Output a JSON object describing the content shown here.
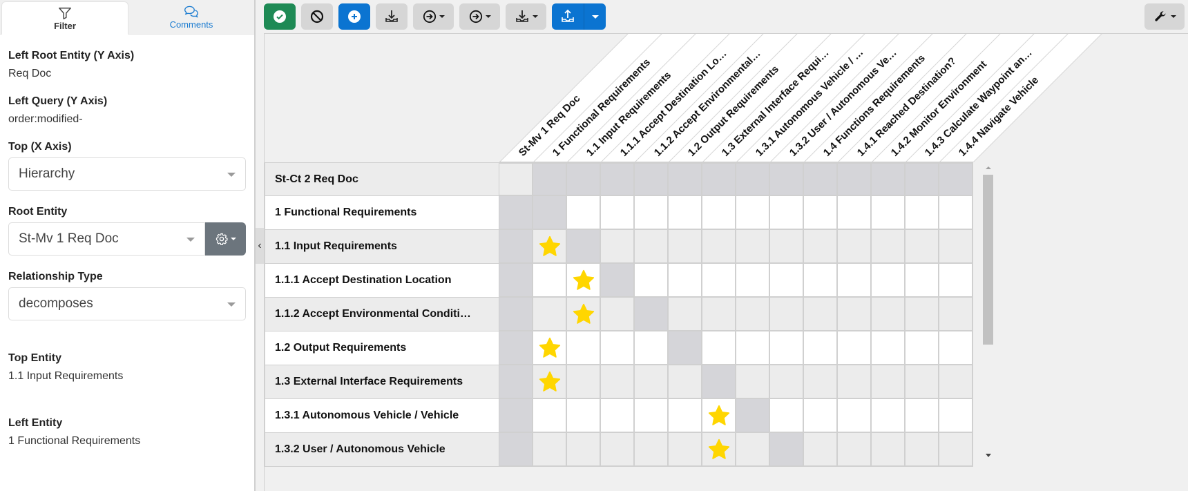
{
  "sidebar": {
    "tabs": [
      {
        "label": "Filter",
        "icon": "filter-icon",
        "active": true
      },
      {
        "label": "Comments",
        "icon": "comments-icon",
        "active": false
      }
    ],
    "fields": {
      "left_root_entity_label": "Left Root Entity (Y Axis)",
      "left_root_entity_value": "Req Doc",
      "left_query_label": "Left Query (Y Axis)",
      "left_query_value": "order:modified-",
      "top_axis_label": "Top (X Axis)",
      "top_axis_value": "Hierarchy",
      "root_entity_label": "Root Entity",
      "root_entity_value": "St-Mv 1 Req Doc",
      "relationship_type_label": "Relationship Type",
      "relationship_type_value": "decomposes",
      "top_entity_label": "Top Entity",
      "top_entity_value": "1.1 Input Requirements",
      "left_entity_label": "Left Entity",
      "left_entity_value": "1 Functional Requirements"
    },
    "collapse_icon": "chevron-left-icon"
  },
  "toolbar": {
    "buttons": [
      {
        "name": "approve",
        "icon": "check-circle-icon",
        "color": "#1e8a55"
      },
      {
        "name": "cancel",
        "icon": "ban-icon",
        "color": "#d6d6d6"
      },
      {
        "name": "add",
        "icon": "plus-circle-icon",
        "color": "#0b74d1"
      },
      {
        "name": "import",
        "icon": "download-tray-icon",
        "color": "#d6d6d6"
      },
      {
        "name": "navigate-1",
        "icon": "arrow-right-circle-icon",
        "dropdown": true
      },
      {
        "name": "navigate-2",
        "icon": "arrow-right-circle-icon",
        "dropdown": true
      },
      {
        "name": "import-dropdown",
        "icon": "download-tray-icon",
        "dropdown": true
      },
      {
        "name": "export",
        "icon": "upload-tray-icon",
        "color": "#0b74d1",
        "split": true
      }
    ],
    "settings_icon": "wrench-icon"
  },
  "matrix": {
    "columns": [
      "St-Mv 1 Req Doc",
      "1 Functional Requirements",
      "1.1 Input Requirements",
      "1.1.1 Accept Destination Lo…",
      "1.1.2 Accept Environmental…",
      "1.2 Output Requirements",
      "1.3 External Interface Requi…",
      "1.3.1 Autonomous Vehicle / …",
      "1.3.2 User / Autonomous Ve…",
      "1.4 Functions Requirements",
      "1.4.1 Reached Destination?",
      "1.4.2 Monitor Environment",
      "1.4.3 Calculate Waypoint an…",
      "1.4.4 Navigate Vehicle"
    ],
    "rows": [
      {
        "label": "St-Ct 2 Req Doc",
        "stars": [],
        "diag": [
          1,
          2,
          3,
          4,
          5,
          6,
          7,
          8,
          9,
          10,
          11,
          12,
          13
        ],
        "root": [
          0
        ]
      },
      {
        "label": "1 Functional Requirements",
        "stars": [],
        "diag": [
          0,
          1
        ]
      },
      {
        "label": "1.1 Input Requirements",
        "stars": [
          1
        ],
        "diag": [
          0,
          2
        ]
      },
      {
        "label": "1.1.1 Accept Destination Location",
        "stars": [
          2
        ],
        "diag": [
          0,
          3
        ]
      },
      {
        "label": "1.1.2 Accept Environmental Conditi…",
        "stars": [
          2
        ],
        "diag": [
          0,
          4
        ]
      },
      {
        "label": "1.2 Output Requirements",
        "stars": [
          1
        ],
        "diag": [
          0,
          5
        ]
      },
      {
        "label": "1.3 External Interface Requirements",
        "stars": [
          1
        ],
        "diag": [
          0,
          6
        ]
      },
      {
        "label": "1.3.1 Autonomous Vehicle / Vehicle",
        "stars": [
          6
        ],
        "diag": [
          0,
          7
        ]
      },
      {
        "label": "1.3.2 User / Autonomous Vehicle",
        "stars": [
          6
        ],
        "diag": [
          0,
          8
        ]
      }
    ],
    "relation_icon": "star-icon",
    "star_color": "#ffd600"
  }
}
